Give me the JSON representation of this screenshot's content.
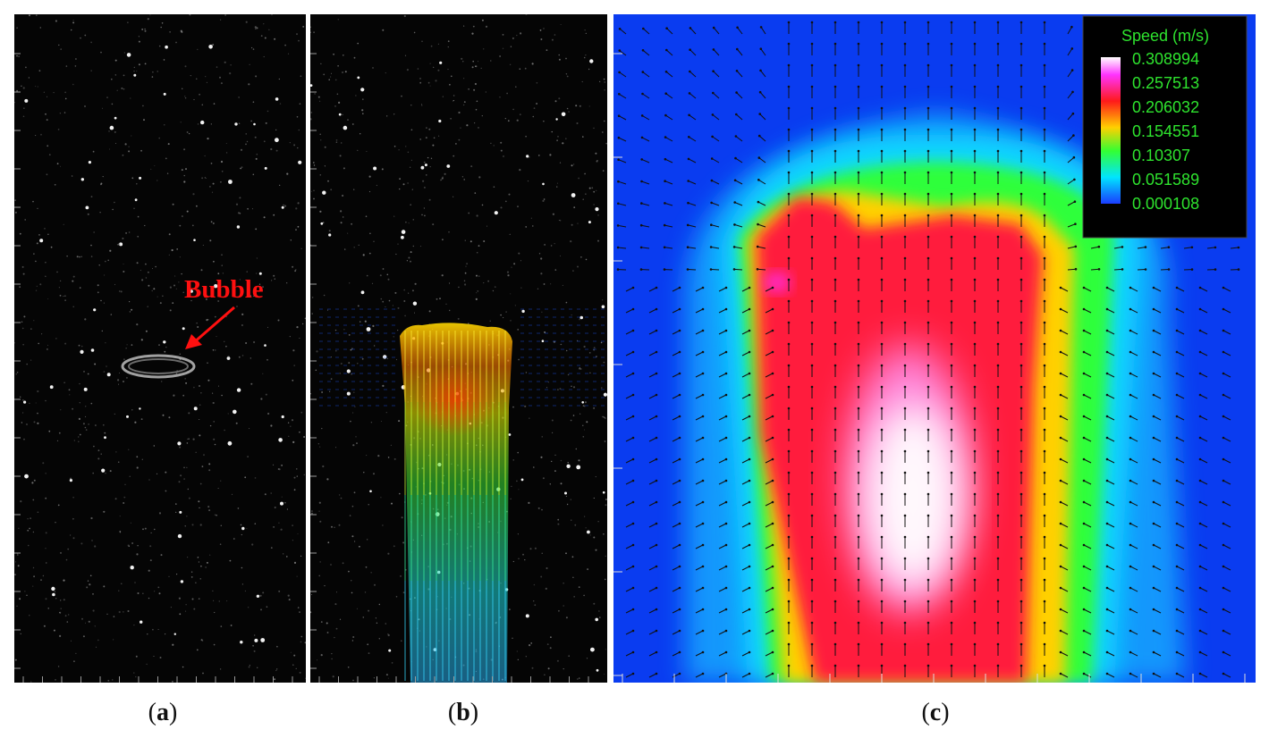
{
  "panels": {
    "a": {
      "caption_open": "(",
      "caption_letter": "a",
      "caption_close": ")",
      "annotation": "Bubble"
    },
    "b": {
      "caption_open": "(",
      "caption_letter": "b",
      "caption_close": ")"
    },
    "c": {
      "caption_open": "(",
      "caption_letter": "c",
      "caption_close": ")",
      "legend": {
        "title": "Speed (m/s)",
        "values": [
          "0.308994",
          "0.257513",
          "0.206032",
          "0.154551",
          "0.10307",
          "0.051589",
          "0.000108"
        ],
        "colors": [
          "#ffffff",
          "#ff33ff",
          "#ff1a1a",
          "#ffd000",
          "#33ff33",
          "#00e5ff",
          "#1a3cff"
        ]
      }
    }
  },
  "colors": {
    "annotation": "#ff1010",
    "legend_text": "#2ee32e",
    "background_field": "#0a3cf0",
    "particles_background": "#050505"
  }
}
